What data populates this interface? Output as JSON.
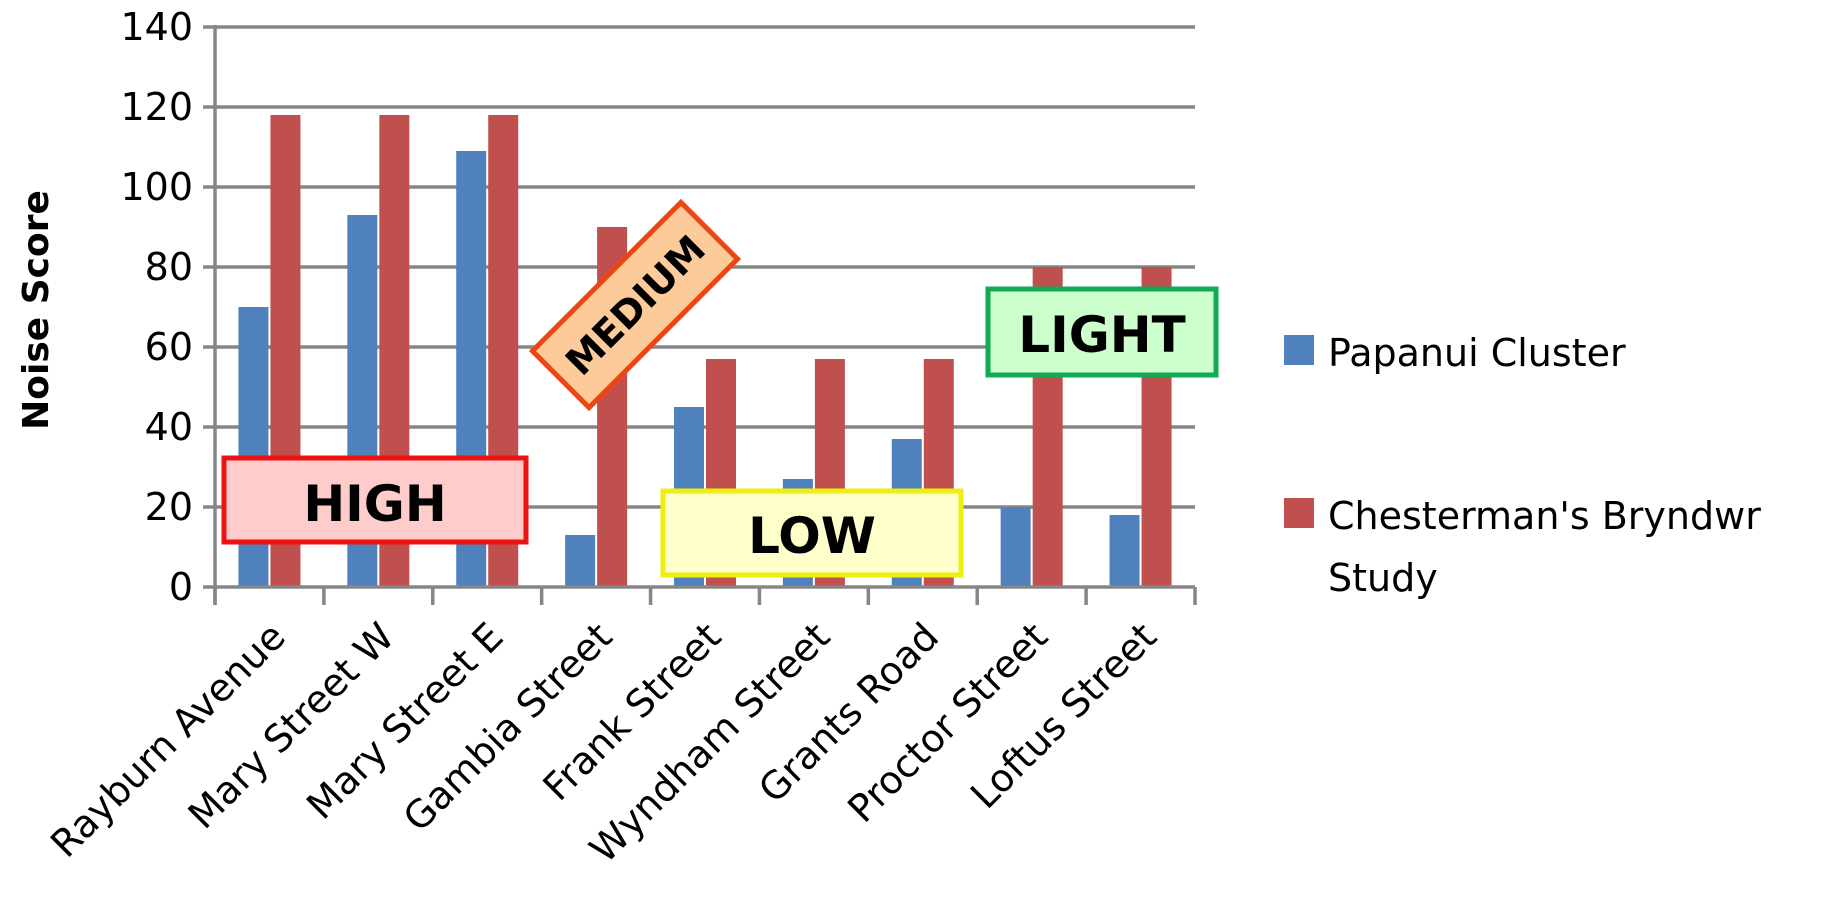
{
  "chart_data": {
    "type": "bar",
    "ylabel": "Noise Score",
    "xlabel": "",
    "ylim": [
      0,
      140
    ],
    "yticks": [
      0,
      20,
      40,
      60,
      80,
      100,
      120,
      140
    ],
    "grid": true,
    "legend_position": "right",
    "categories": [
      "Rayburn Avenue",
      "Mary Street W",
      "Mary Street E",
      "Gambia Street",
      "Frank Street",
      "Wyndham Street",
      "Grants Road",
      "Proctor Street",
      "Loftus Street"
    ],
    "series": [
      {
        "name": "Papanui Cluster",
        "color": "#4F81BD",
        "values": [
          70,
          93,
          109,
          13,
          45,
          27,
          37,
          20,
          18
        ]
      },
      {
        "name": "Chesterman's Bryndwr Study",
        "color": "#C0504D",
        "values": [
          118,
          118,
          118,
          90,
          57,
          57,
          57,
          80,
          80
        ]
      }
    ],
    "annotations": [
      {
        "label": "HIGH",
        "fill": "#FFCCCC",
        "border": "#EE1111"
      },
      {
        "label": "MEDIUM",
        "fill": "#FDCB9A",
        "border": "#EE4411"
      },
      {
        "label": "LOW",
        "fill": "#FFFFCC",
        "border": "#EEEE11"
      },
      {
        "label": "LIGHT",
        "fill": "#CCFFCC",
        "border": "#11AA55"
      }
    ]
  }
}
